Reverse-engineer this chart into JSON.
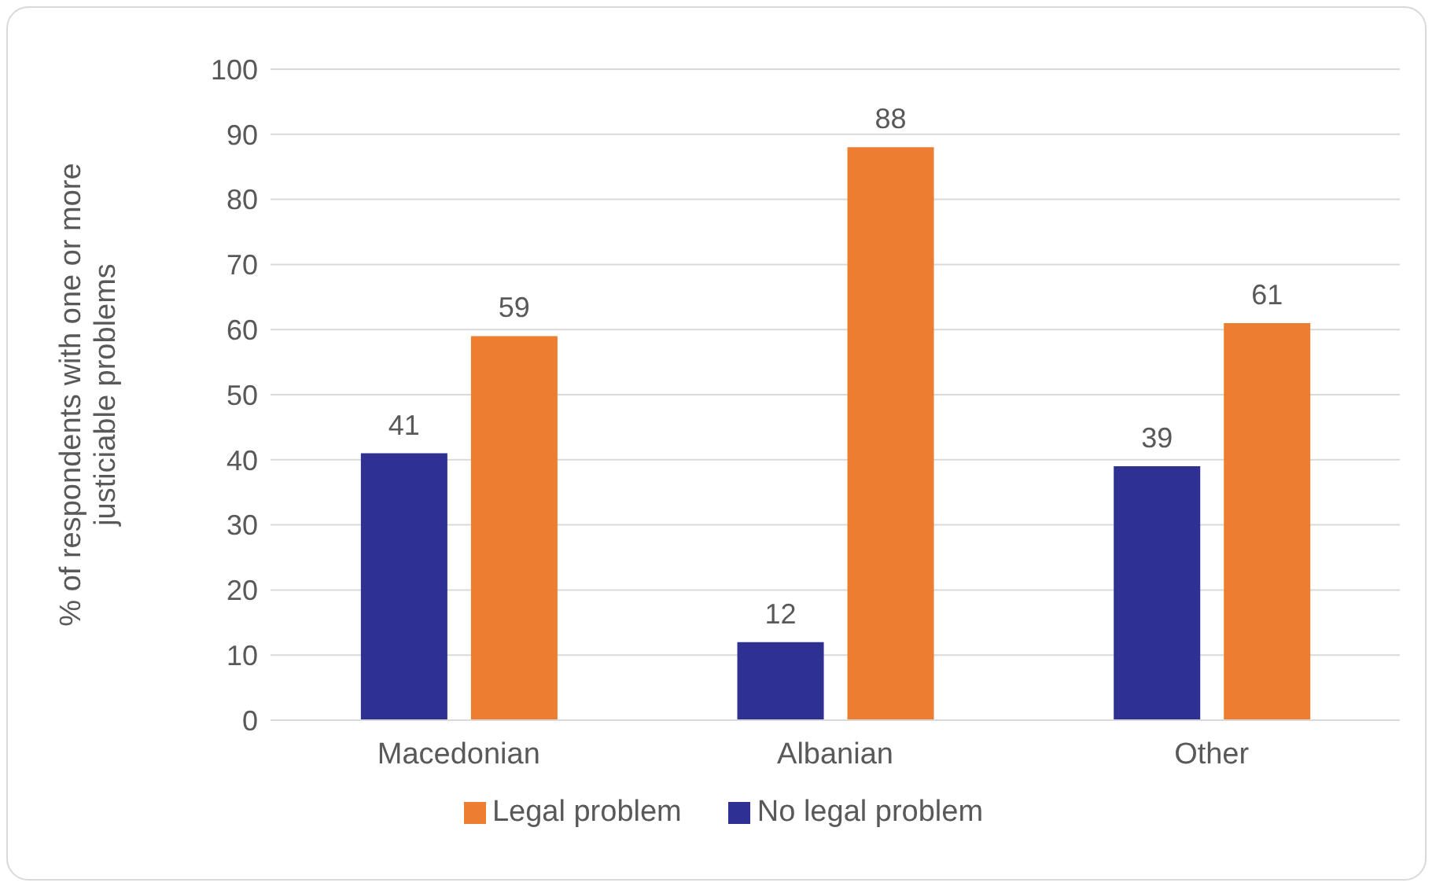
{
  "chart_data": {
    "type": "bar",
    "ylabel": "% of respondents with one or more justiciable problems",
    "categories": [
      "Macedonian",
      "Albanian",
      "Other"
    ],
    "series": [
      {
        "name": "No legal problem",
        "color": "#2e3192",
        "values": [
          41,
          12,
          39
        ]
      },
      {
        "name": "Legal problem",
        "color": "#ed7d31",
        "values": [
          59,
          88,
          61
        ]
      }
    ],
    "ylim": [
      0,
      100
    ],
    "yticks": [
      0,
      10,
      20,
      30,
      40,
      50,
      60,
      70,
      80,
      90,
      100
    ],
    "grid": "y",
    "legend": "bottom",
    "data_labels": true
  }
}
